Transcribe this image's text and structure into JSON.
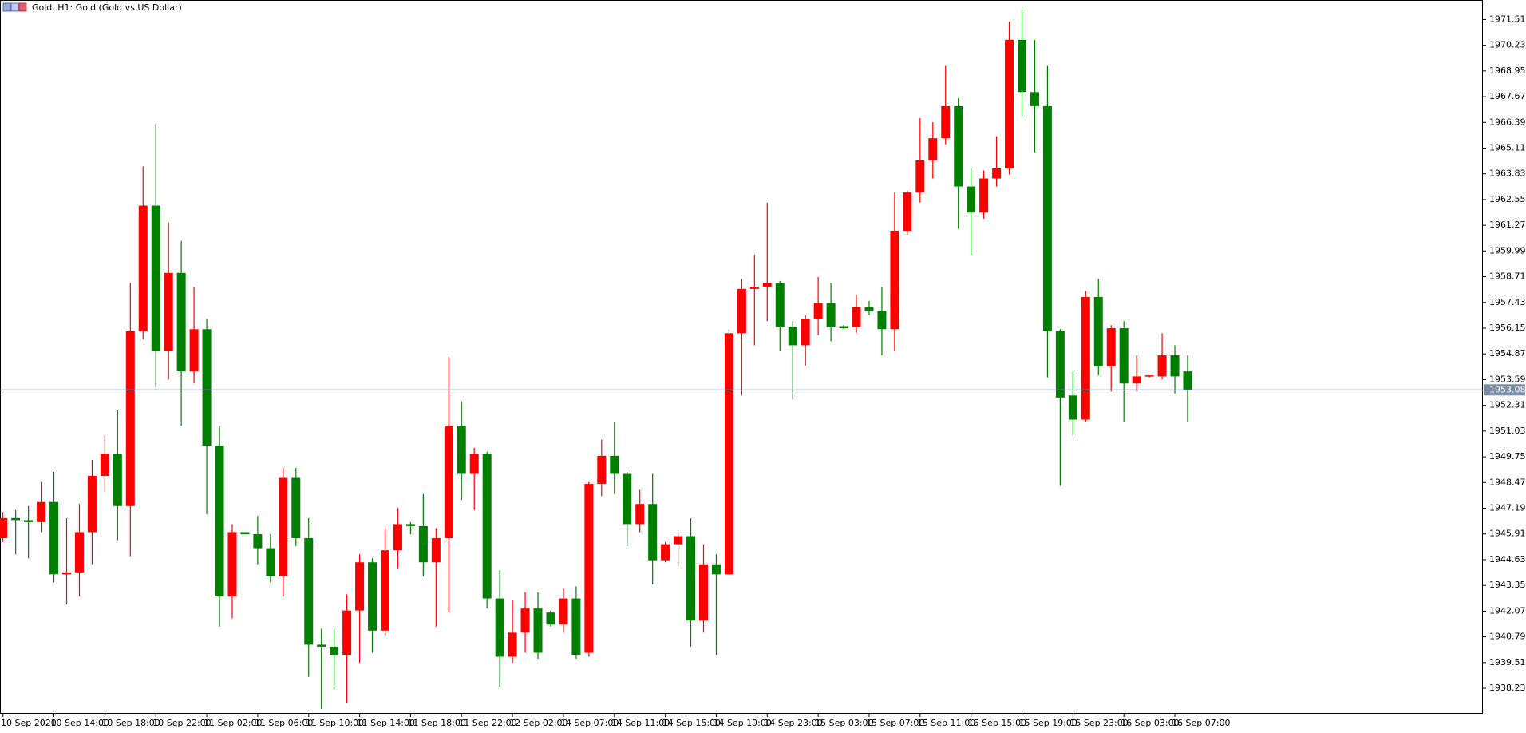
{
  "chart_data": {
    "type": "candlestick",
    "title": "Gold, H1:  Gold (Gold vs US Dollar)",
    "categories": [
      "10 Sep 2020",
      null,
      null,
      null,
      "10 Sep 14:00",
      null,
      null,
      null,
      "10 Sep 18:00",
      null,
      null,
      null,
      "10 Sep 22:00",
      null,
      null,
      null,
      "11 Sep 02:00",
      null,
      null,
      null,
      "11 Sep 06:00",
      null,
      null,
      null,
      "11 Sep 10:00",
      null,
      null,
      null,
      "11 Sep 14:00",
      null,
      null,
      null,
      "11 Sep 18:00",
      null,
      null,
      null,
      "11 Sep 22:00",
      null,
      null,
      null,
      "12 Sep 02:00",
      null,
      null,
      null,
      "14 Sep 07:00",
      null,
      null,
      null,
      "14 Sep 11:00",
      null,
      null,
      null,
      "14 Sep 15:00",
      null,
      null,
      null,
      "14 Sep 19:00",
      null,
      null,
      null,
      "14 Sep 23:00",
      null,
      null,
      null,
      "15 Sep 03:00",
      null,
      null,
      null,
      "15 Sep 07:00",
      null,
      null,
      null,
      "15 Sep 11:00",
      null,
      null,
      null,
      "15 Sep 15:00",
      null,
      null,
      null,
      "15 Sep 19:00",
      null,
      null,
      null,
      "15 Sep 23:00",
      null,
      null,
      null,
      "16 Sep 03:00",
      null,
      null,
      null,
      "16 Sep 07:00",
      null
    ],
    "open": [
      1945.7,
      1946.7,
      1946.6,
      1946.5,
      1947.5,
      1943.9,
      1944.0,
      1946.0,
      1948.8,
      1949.9,
      1947.3,
      1956.0,
      1962.25,
      1955.0,
      1958.9,
      1954.0,
      1956.1,
      1950.3,
      1942.8,
      1946.0,
      1945.9,
      1945.2,
      1943.8,
      1948.7,
      1945.7,
      1940.4,
      1940.3,
      1939.9,
      1942.1,
      1944.5,
      1941.1,
      1945.1,
      1946.4,
      1946.3,
      1944.5,
      1945.7,
      1951.3,
      1948.9,
      1949.9,
      1942.7,
      1939.8,
      1941.0,
      1942.2,
      1942.0,
      1941.4,
      1942.7,
      1940.0,
      1948.4,
      1949.8,
      1948.9,
      1946.4,
      1947.4,
      1944.6,
      1945.4,
      1945.8,
      1941.6,
      1944.4,
      1943.9,
      1955.9,
      1958.1,
      1958.2,
      1958.4,
      1956.2,
      1955.3,
      1956.6,
      1957.4,
      1956.25,
      1956.2,
      1957.2,
      1957.0,
      1956.1,
      1961.0,
      1962.9,
      1964.5,
      1965.6,
      1967.2,
      1963.2,
      1961.9,
      1963.6,
      1964.1,
      1970.5,
      1967.9,
      1967.2,
      1956.0,
      1952.8,
      1951.6,
      1957.7,
      1954.25,
      1956.15,
      1953.4,
      1953.75,
      1953.75,
      1954.8,
      1954.0
    ],
    "high": [
      1947.0,
      1947.1,
      1947.3,
      1948.5,
      1949.0,
      1946.7,
      1947.4,
      1949.6,
      1950.8,
      1952.1,
      1958.4,
      1964.2,
      1966.3,
      1961.4,
      1960.5,
      1958.2,
      1956.6,
      1951.3,
      1946.4,
      1946.0,
      1946.8,
      1945.9,
      1949.2,
      1949.2,
      1946.7,
      1941.2,
      1941.2,
      1942.9,
      1944.9,
      1944.7,
      1946.2,
      1947.2,
      1946.5,
      1947.9,
      1946.2,
      1954.7,
      1952.5,
      1950.2,
      1950.0,
      1944.1,
      1942.6,
      1943.0,
      1943.0,
      1942.1,
      1943.2,
      1943.3,
      1948.5,
      1950.6,
      1951.5,
      1949.0,
      1948.1,
      1948.9,
      1945.5,
      1946.0,
      1946.7,
      1945.4,
      1944.9,
      1956.1,
      1958.6,
      1959.8,
      1962.4,
      1958.5,
      1956.5,
      1956.8,
      1958.7,
      1958.4,
      1956.3,
      1957.8,
      1957.5,
      1958.2,
      1962.9,
      1963.0,
      1966.6,
      1966.4,
      1969.2,
      1967.6,
      1964.1,
      1964.0,
      1965.7,
      1971.4,
      1972.0,
      1970.5,
      1969.2,
      1956.1,
      1954.0,
      1958.0,
      1958.6,
      1956.3,
      1956.5,
      1954.8,
      1953.8,
      1955.9,
      1955.3,
      1954.8
    ],
    "low": [
      1945.5,
      1944.9,
      1944.7,
      1946.0,
      1943.5,
      1942.4,
      1942.8,
      1944.4,
      1948.0,
      1945.6,
      1944.8,
      1955.6,
      1953.2,
      1953.6,
      1951.3,
      1953.4,
      1946.9,
      1941.3,
      1941.7,
      1945.9,
      1944.4,
      1943.5,
      1942.8,
      1945.3,
      1938.8,
      1937.2,
      1938.2,
      1937.5,
      1939.5,
      1940.0,
      1940.9,
      1944.2,
      1945.9,
      1943.8,
      1941.3,
      1942.0,
      1947.6,
      1947.1,
      1942.2,
      1938.3,
      1939.5,
      1940.0,
      1939.7,
      1941.3,
      1941.0,
      1939.7,
      1939.8,
      1947.8,
      1947.9,
      1945.3,
      1946.0,
      1943.4,
      1944.5,
      1944.3,
      1940.3,
      1941.0,
      1939.9,
      1943.9,
      1952.8,
      1955.3,
      1956.5,
      1955.0,
      1952.6,
      1954.3,
      1955.8,
      1955.5,
      1956.1,
      1955.9,
      1956.8,
      1954.8,
      1955.0,
      1960.8,
      1962.4,
      1963.6,
      1965.3,
      1961.1,
      1959.8,
      1961.6,
      1963.2,
      1963.8,
      1966.7,
      1964.9,
      1953.7,
      1948.3,
      1950.8,
      1951.5,
      1953.8,
      1953.0,
      1951.5,
      1953.0,
      1953.7,
      1953.6,
      1952.9,
      1951.5
    ],
    "close": [
      1946.7,
      1946.6,
      1946.5,
      1947.5,
      1943.9,
      1944.0,
      1946.0,
      1948.8,
      1949.9,
      1947.3,
      1956.0,
      1962.25,
      1955.0,
      1958.9,
      1954.0,
      1956.1,
      1950.3,
      1942.8,
      1946.0,
      1945.9,
      1945.2,
      1943.8,
      1948.7,
      1945.7,
      1940.4,
      1940.3,
      1939.9,
      1942.1,
      1944.5,
      1941.1,
      1945.1,
      1946.4,
      1946.3,
      1944.5,
      1945.7,
      1951.3,
      1948.9,
      1949.9,
      1942.7,
      1939.8,
      1941.0,
      1942.2,
      1940.0,
      1941.4,
      1942.7,
      1939.9,
      1948.4,
      1949.8,
      1948.9,
      1946.4,
      1947.4,
      1944.6,
      1945.4,
      1945.8,
      1941.6,
      1944.4,
      1943.9,
      1955.9,
      1958.1,
      1958.2,
      1958.4,
      1956.2,
      1955.3,
      1956.6,
      1957.4,
      1956.2,
      1956.15,
      1957.2,
      1957.0,
      1956.1,
      1961.0,
      1962.9,
      1964.5,
      1965.6,
      1967.2,
      1963.2,
      1961.9,
      1963.6,
      1964.1,
      1970.5,
      1967.9,
      1967.2,
      1956.0,
      1952.7,
      1951.6,
      1957.7,
      1954.25,
      1956.15,
      1953.4,
      1953.75,
      1953.8,
      1954.8,
      1953.75,
      1953.08
    ],
    "up_color": "#ff0000",
    "down_color": "#008000",
    "ylim": [
      1936.96,
      1972.48
    ],
    "yticks": [
      1971.51,
      1970.23,
      1968.95,
      1967.67,
      1966.39,
      1965.11,
      1963.83,
      1962.55,
      1961.27,
      1959.99,
      1958.71,
      1957.43,
      1956.15,
      1954.87,
      1953.59,
      1952.31,
      1951.03,
      1949.75,
      1948.47,
      1947.19,
      1945.91,
      1944.63,
      1943.35,
      1942.07,
      1940.79,
      1939.51,
      1938.23
    ],
    "current_price": 1953.08,
    "current_price_color": "#7a8ca6"
  }
}
